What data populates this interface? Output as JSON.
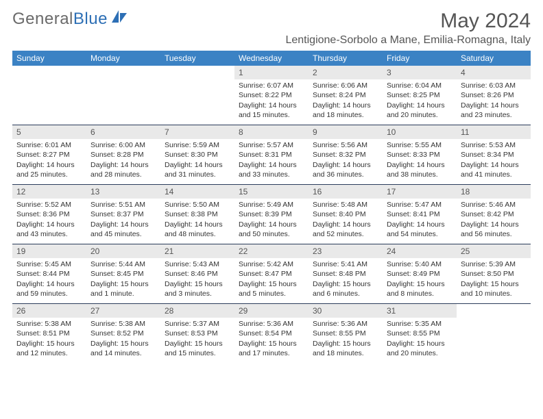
{
  "logo": {
    "text_gray": "General",
    "text_blue": "Blue"
  },
  "title": "May 2024",
  "location": "Lentigione-Sorbolo a Mane, Emilia-Romagna, Italy",
  "colors": {
    "header_bg": "#3b82c4",
    "header_text": "#ffffff",
    "daynum_bg": "#e9e9e9",
    "week_border": "#2a3b5a",
    "logo_gray": "#6a6a6a",
    "logo_blue": "#2d6fb5"
  },
  "day_headers": [
    "Sunday",
    "Monday",
    "Tuesday",
    "Wednesday",
    "Thursday",
    "Friday",
    "Saturday"
  ],
  "weeks": [
    [
      {
        "n": "",
        "sr": "",
        "ss": "",
        "dl": ""
      },
      {
        "n": "",
        "sr": "",
        "ss": "",
        "dl": ""
      },
      {
        "n": "",
        "sr": "",
        "ss": "",
        "dl": ""
      },
      {
        "n": "1",
        "sr": "Sunrise: 6:07 AM",
        "ss": "Sunset: 8:22 PM",
        "dl": "Daylight: 14 hours and 15 minutes."
      },
      {
        "n": "2",
        "sr": "Sunrise: 6:06 AM",
        "ss": "Sunset: 8:24 PM",
        "dl": "Daylight: 14 hours and 18 minutes."
      },
      {
        "n": "3",
        "sr": "Sunrise: 6:04 AM",
        "ss": "Sunset: 8:25 PM",
        "dl": "Daylight: 14 hours and 20 minutes."
      },
      {
        "n": "4",
        "sr": "Sunrise: 6:03 AM",
        "ss": "Sunset: 8:26 PM",
        "dl": "Daylight: 14 hours and 23 minutes."
      }
    ],
    [
      {
        "n": "5",
        "sr": "Sunrise: 6:01 AM",
        "ss": "Sunset: 8:27 PM",
        "dl": "Daylight: 14 hours and 25 minutes."
      },
      {
        "n": "6",
        "sr": "Sunrise: 6:00 AM",
        "ss": "Sunset: 8:28 PM",
        "dl": "Daylight: 14 hours and 28 minutes."
      },
      {
        "n": "7",
        "sr": "Sunrise: 5:59 AM",
        "ss": "Sunset: 8:30 PM",
        "dl": "Daylight: 14 hours and 31 minutes."
      },
      {
        "n": "8",
        "sr": "Sunrise: 5:57 AM",
        "ss": "Sunset: 8:31 PM",
        "dl": "Daylight: 14 hours and 33 minutes."
      },
      {
        "n": "9",
        "sr": "Sunrise: 5:56 AM",
        "ss": "Sunset: 8:32 PM",
        "dl": "Daylight: 14 hours and 36 minutes."
      },
      {
        "n": "10",
        "sr": "Sunrise: 5:55 AM",
        "ss": "Sunset: 8:33 PM",
        "dl": "Daylight: 14 hours and 38 minutes."
      },
      {
        "n": "11",
        "sr": "Sunrise: 5:53 AM",
        "ss": "Sunset: 8:34 PM",
        "dl": "Daylight: 14 hours and 41 minutes."
      }
    ],
    [
      {
        "n": "12",
        "sr": "Sunrise: 5:52 AM",
        "ss": "Sunset: 8:36 PM",
        "dl": "Daylight: 14 hours and 43 minutes."
      },
      {
        "n": "13",
        "sr": "Sunrise: 5:51 AM",
        "ss": "Sunset: 8:37 PM",
        "dl": "Daylight: 14 hours and 45 minutes."
      },
      {
        "n": "14",
        "sr": "Sunrise: 5:50 AM",
        "ss": "Sunset: 8:38 PM",
        "dl": "Daylight: 14 hours and 48 minutes."
      },
      {
        "n": "15",
        "sr": "Sunrise: 5:49 AM",
        "ss": "Sunset: 8:39 PM",
        "dl": "Daylight: 14 hours and 50 minutes."
      },
      {
        "n": "16",
        "sr": "Sunrise: 5:48 AM",
        "ss": "Sunset: 8:40 PM",
        "dl": "Daylight: 14 hours and 52 minutes."
      },
      {
        "n": "17",
        "sr": "Sunrise: 5:47 AM",
        "ss": "Sunset: 8:41 PM",
        "dl": "Daylight: 14 hours and 54 minutes."
      },
      {
        "n": "18",
        "sr": "Sunrise: 5:46 AM",
        "ss": "Sunset: 8:42 PM",
        "dl": "Daylight: 14 hours and 56 minutes."
      }
    ],
    [
      {
        "n": "19",
        "sr": "Sunrise: 5:45 AM",
        "ss": "Sunset: 8:44 PM",
        "dl": "Daylight: 14 hours and 59 minutes."
      },
      {
        "n": "20",
        "sr": "Sunrise: 5:44 AM",
        "ss": "Sunset: 8:45 PM",
        "dl": "Daylight: 15 hours and 1 minute."
      },
      {
        "n": "21",
        "sr": "Sunrise: 5:43 AM",
        "ss": "Sunset: 8:46 PM",
        "dl": "Daylight: 15 hours and 3 minutes."
      },
      {
        "n": "22",
        "sr": "Sunrise: 5:42 AM",
        "ss": "Sunset: 8:47 PM",
        "dl": "Daylight: 15 hours and 5 minutes."
      },
      {
        "n": "23",
        "sr": "Sunrise: 5:41 AM",
        "ss": "Sunset: 8:48 PM",
        "dl": "Daylight: 15 hours and 6 minutes."
      },
      {
        "n": "24",
        "sr": "Sunrise: 5:40 AM",
        "ss": "Sunset: 8:49 PM",
        "dl": "Daylight: 15 hours and 8 minutes."
      },
      {
        "n": "25",
        "sr": "Sunrise: 5:39 AM",
        "ss": "Sunset: 8:50 PM",
        "dl": "Daylight: 15 hours and 10 minutes."
      }
    ],
    [
      {
        "n": "26",
        "sr": "Sunrise: 5:38 AM",
        "ss": "Sunset: 8:51 PM",
        "dl": "Daylight: 15 hours and 12 minutes."
      },
      {
        "n": "27",
        "sr": "Sunrise: 5:38 AM",
        "ss": "Sunset: 8:52 PM",
        "dl": "Daylight: 15 hours and 14 minutes."
      },
      {
        "n": "28",
        "sr": "Sunrise: 5:37 AM",
        "ss": "Sunset: 8:53 PM",
        "dl": "Daylight: 15 hours and 15 minutes."
      },
      {
        "n": "29",
        "sr": "Sunrise: 5:36 AM",
        "ss": "Sunset: 8:54 PM",
        "dl": "Daylight: 15 hours and 17 minutes."
      },
      {
        "n": "30",
        "sr": "Sunrise: 5:36 AM",
        "ss": "Sunset: 8:55 PM",
        "dl": "Daylight: 15 hours and 18 minutes."
      },
      {
        "n": "31",
        "sr": "Sunrise: 5:35 AM",
        "ss": "Sunset: 8:55 PM",
        "dl": "Daylight: 15 hours and 20 minutes."
      },
      {
        "n": "",
        "sr": "",
        "ss": "",
        "dl": ""
      }
    ]
  ]
}
